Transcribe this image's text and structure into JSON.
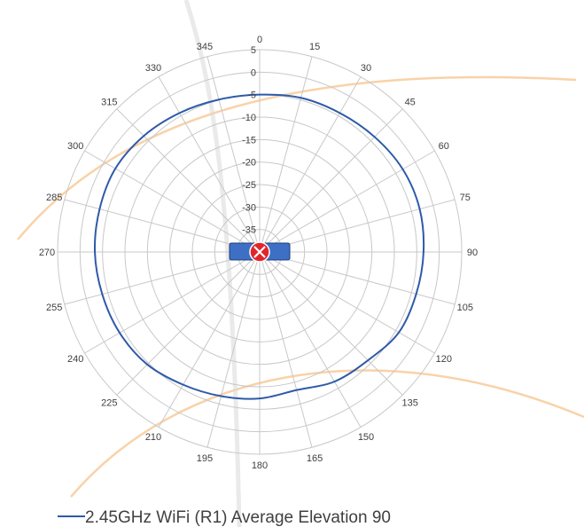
{
  "chart_data": {
    "type": "radar",
    "angle_labels": [
      "0",
      "15",
      "30",
      "45",
      "60",
      "75",
      "90",
      "105",
      "120",
      "135",
      "150",
      "165",
      "180",
      "195",
      "210",
      "225",
      "240",
      "255",
      "270",
      "285",
      "300",
      "315",
      "330",
      "345"
    ],
    "radial_labels": [
      "5",
      "0",
      "-5",
      "-10",
      "-15",
      "-20",
      "-25",
      "-30",
      "-35"
    ],
    "rlim": [
      -40,
      5
    ],
    "grid": true,
    "legend_position": "bottom",
    "series": [
      {
        "name": "2.45GHz WiFi (R1) Average Elevation 90",
        "color": "#2e5aa8",
        "angles": [
          0,
          15,
          30,
          45,
          60,
          75,
          90,
          105,
          120,
          135,
          150,
          165,
          180,
          195,
          210,
          225,
          240,
          255,
          270,
          285,
          300,
          315,
          330,
          345
        ],
        "values": [
          -5,
          -4.5,
          -4.3,
          -3.8,
          -3.2,
          -3.1,
          -3.5,
          -3.9,
          -4.2,
          -5.9,
          -6.7,
          -8.2,
          -7.4,
          -6.8,
          -5.9,
          -4.6,
          -4.0,
          -3.7,
          -3.3,
          -3.1,
          -2.9,
          -3.5,
          -4.3,
          -4.9
        ]
      }
    ]
  },
  "device": {
    "body_color": "#3d6fc5",
    "marker_color": "#e0262b",
    "marker_icon": "x-mark-icon"
  },
  "decor": {
    "arc_color": "#f9d2a8",
    "streak_color": "#d8d8d8"
  }
}
